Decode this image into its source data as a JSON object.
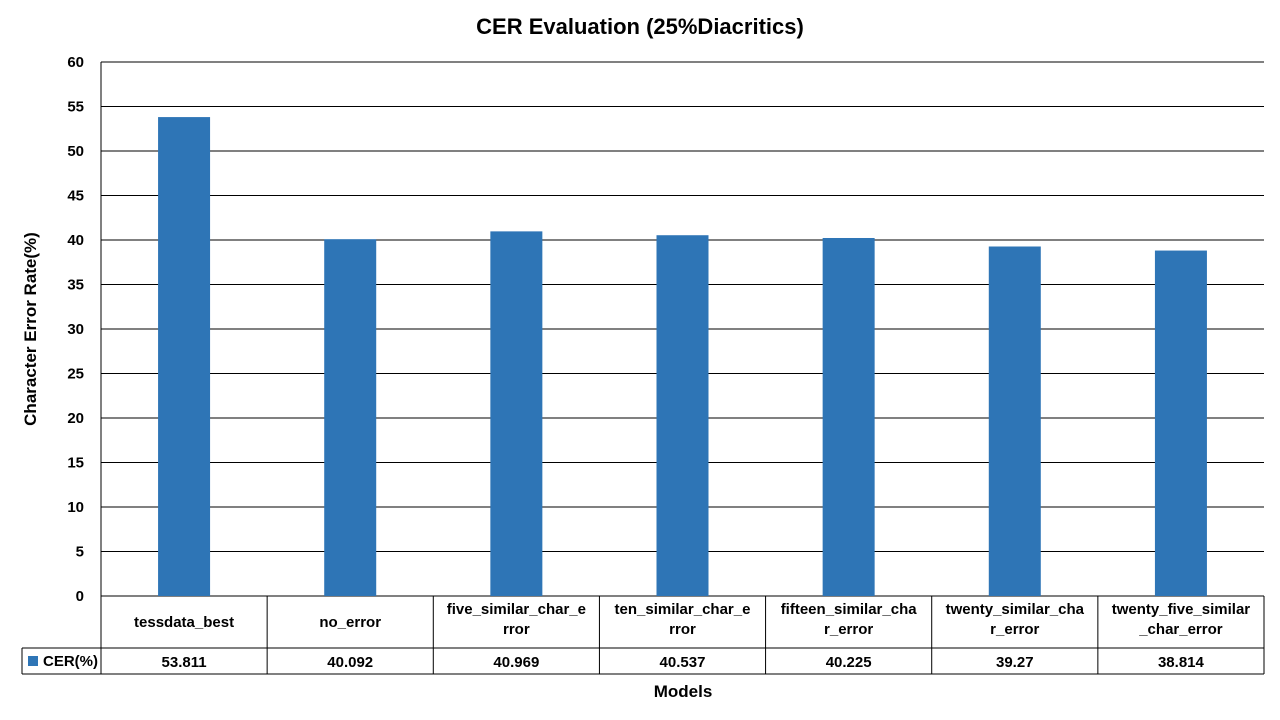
{
  "chart_data": {
    "type": "bar",
    "title": "CER Evaluation (25%Diacritics)",
    "xlabel": "Models",
    "ylabel": "Character Error Rate(%)",
    "ylim": [
      0,
      60
    ],
    "yticks": [
      0,
      5,
      10,
      15,
      20,
      25,
      30,
      35,
      40,
      45,
      50,
      55,
      60
    ],
    "grid": true,
    "categories": [
      [
        "tessdata_best"
      ],
      [
        "no_error"
      ],
      [
        "five_similar_char_e",
        "rror"
      ],
      [
        "ten_similar_char_e",
        "rror"
      ],
      [
        "fifteen_similar_cha",
        "r_error"
      ],
      [
        "twenty_similar_cha",
        "r_error"
      ],
      [
        "twenty_five_similar",
        "_char_error"
      ]
    ],
    "series": [
      {
        "name": "CER(%)",
        "color": "#2E75B6",
        "values": [
          53.811,
          40.092,
          40.969,
          40.537,
          40.225,
          39.27,
          38.814
        ],
        "labels": [
          "53.811",
          "40.092",
          "40.969",
          "40.537",
          "40.225",
          "39.27",
          "38.814"
        ]
      }
    ]
  }
}
